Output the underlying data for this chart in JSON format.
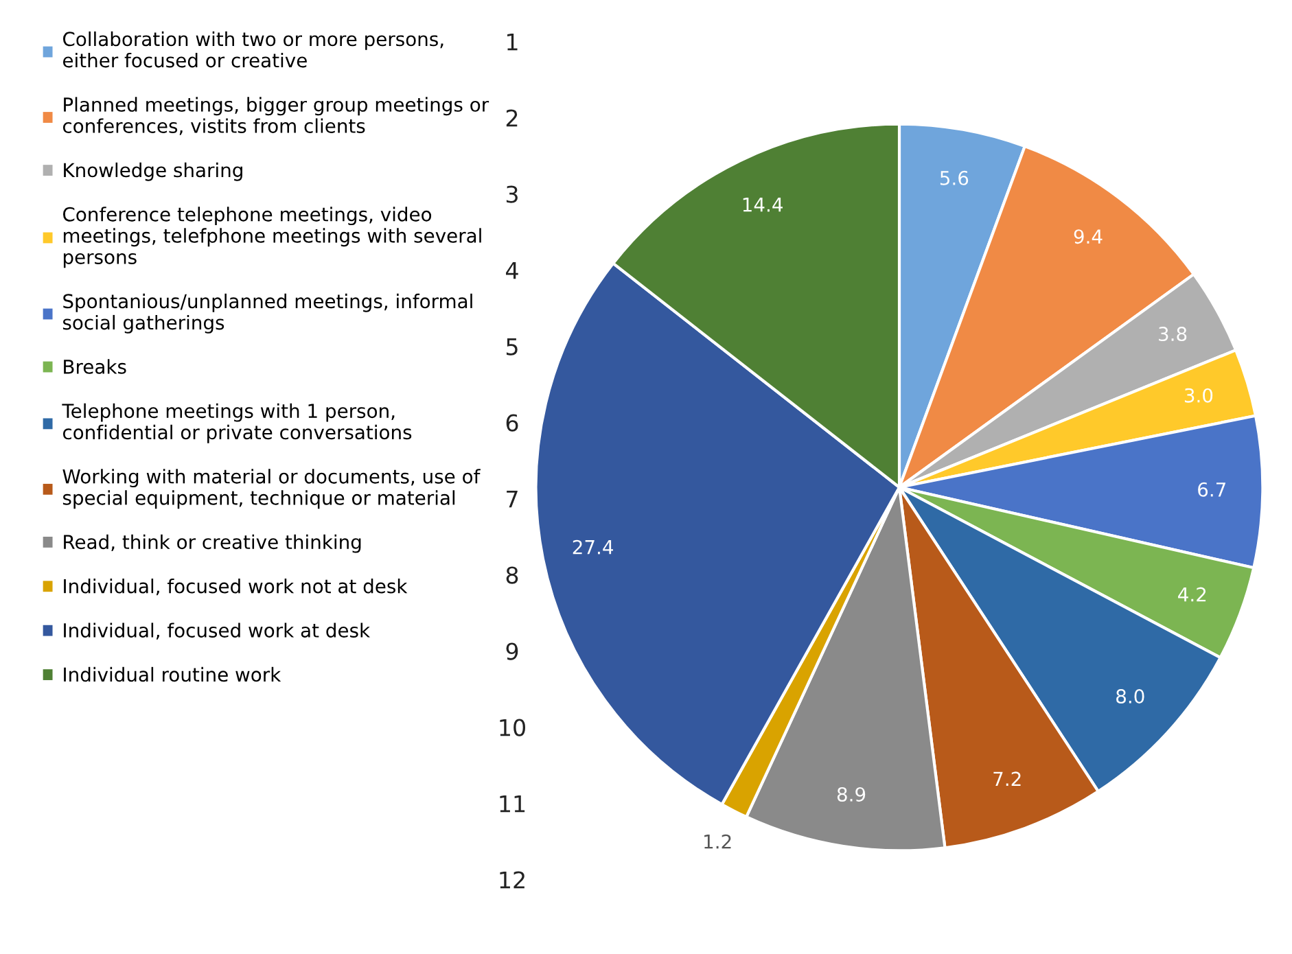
{
  "chart_data": {
    "type": "pie",
    "categories": [
      "Collaboration with two or more persons,\neither focused or creative",
      "Planned meetings, bigger group meetings or\nconferences, vistits from clients",
      "Knowledge sharing",
      "Conference telephone meetings, video\nmeetings, telefphone meetings with several\npersons",
      "Spontanious/unplanned meetings, informal\nsocial gatherings",
      "Breaks",
      "Telephone meetings with 1 person,\nconfidential or private conversations",
      "Working with material or documents, use of\nspecial equipment, technique or material",
      "Read, think or creative thinking",
      "Individual, focused work not at desk",
      "Individual, focused work at desk",
      "Individual routine work"
    ],
    "values": [
      5.6,
      9.4,
      3.8,
      3.0,
      6.7,
      4.2,
      8.0,
      7.2,
      8.9,
      1.2,
      27.4,
      14.4
    ],
    "colors": [
      "#6fa5dc",
      "#f08a45",
      "#b0b0b0",
      "#ffc92a",
      "#4a74c8",
      "#7cb552",
      "#2f6aa6",
      "#b85a1a",
      "#8a8a8a",
      "#d9a300",
      "#34589e",
      "#4f8034"
    ],
    "value_labels": [
      "5.6",
      "9.4",
      "3.8",
      "3.0",
      "6.7",
      "4.2",
      "8.0",
      "7.2",
      "8.9",
      "1.2",
      "27.4",
      "14.4"
    ],
    "legend": "left",
    "annotations": [
      "1",
      "2",
      "3",
      "4",
      "5",
      "6",
      "7",
      "8",
      "9",
      "10",
      "11",
      "12"
    ]
  }
}
